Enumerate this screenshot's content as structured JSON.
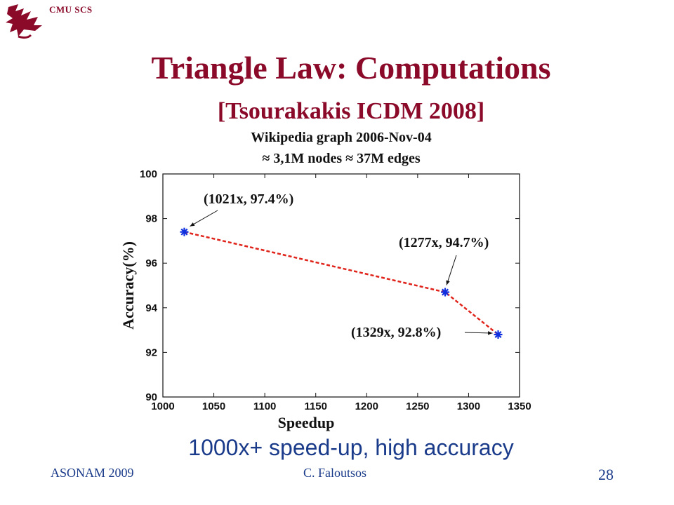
{
  "header": {
    "label": "CMU SCS",
    "brand_color": "#8b0a2a",
    "logo_icon": "dragon-icon"
  },
  "slide": {
    "title": "Triangle Law: Computations",
    "subtitle": "[Tsourakakis ICDM 2008]",
    "caption": "1000x+ speed-up, high accuracy",
    "accent_color": "#1a3a8a"
  },
  "footer": {
    "left": "ASONAM 2009",
    "center": "C. Faloutsos",
    "page_number": "28"
  },
  "chart_data": {
    "type": "line",
    "title": "Wikipedia graph 2006-Nov-04",
    "subtitle": "≈ 3,1M nodes ≈ 37M edges",
    "xlabel": "Speedup",
    "ylabel": "Accuracy(%)",
    "xlim": [
      1000,
      1350
    ],
    "ylim": [
      90,
      100
    ],
    "x_ticks": [
      "1000",
      "1050",
      "1100",
      "1150",
      "1200",
      "1250",
      "1300",
      "1350"
    ],
    "y_ticks": [
      "90",
      "92",
      "94",
      "96",
      "98",
      "100"
    ],
    "grid": false,
    "series": [
      {
        "color": "#e0231a",
        "marker_color": "#1030e0",
        "x": [
          1021,
          1277,
          1329
        ],
        "y": [
          97.4,
          94.7,
          92.8
        ]
      }
    ],
    "annotations": [
      "(1021x, 97.4%)",
      "(1277x, 94.7%)",
      "(1329x, 92.8%)"
    ]
  }
}
